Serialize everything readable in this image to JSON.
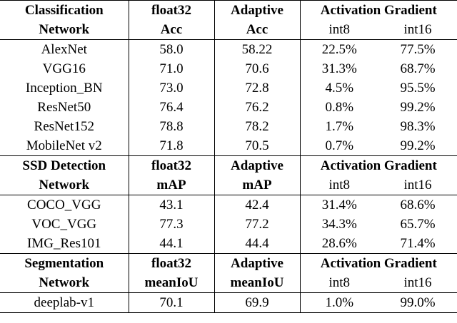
{
  "sections": [
    {
      "header": [
        [
          "Classification",
          "float32",
          "Adaptive",
          "Activation Gradient"
        ],
        [
          "Network",
          "Acc",
          "Acc",
          "int8",
          "int16"
        ]
      ],
      "rows": [
        [
          "AlexNet",
          "58.0",
          "58.22",
          "22.5%",
          "77.5%"
        ],
        [
          "VGG16",
          "71.0",
          "70.6",
          "31.3%",
          "68.7%"
        ],
        [
          "Inception_BN",
          "73.0",
          "72.8",
          "4.5%",
          "95.5%"
        ],
        [
          "ResNet50",
          "76.4",
          "76.2",
          "0.8%",
          "99.2%"
        ],
        [
          "ResNet152",
          "78.8",
          "78.2",
          "1.7%",
          "98.3%"
        ],
        [
          "MobileNet v2",
          "71.8",
          "70.5",
          "0.7%",
          "99.2%"
        ]
      ]
    },
    {
      "header": [
        [
          "SSD Detection",
          "float32",
          "Adaptive",
          "Activation Gradient"
        ],
        [
          "Network",
          "mAP",
          "mAP",
          "int8",
          "int16"
        ]
      ],
      "rows": [
        [
          "COCO_VGG",
          "43.1",
          "42.4",
          "31.4%",
          "68.6%"
        ],
        [
          "VOC_VGG",
          "77.3",
          "77.2",
          "34.3%",
          "65.7%"
        ],
        [
          "IMG_Res101",
          "44.1",
          "44.4",
          "28.6%",
          "71.4%"
        ]
      ]
    },
    {
      "header": [
        [
          "Segmentation",
          "float32",
          "Adaptive",
          "Activation Gradient"
        ],
        [
          "Network",
          "meanIoU",
          "meanIoU",
          "int8",
          "int16"
        ]
      ],
      "rows": [
        [
          "deeplab-v1",
          "70.1",
          "69.9",
          "1.0%",
          "99.0%"
        ]
      ]
    }
  ]
}
